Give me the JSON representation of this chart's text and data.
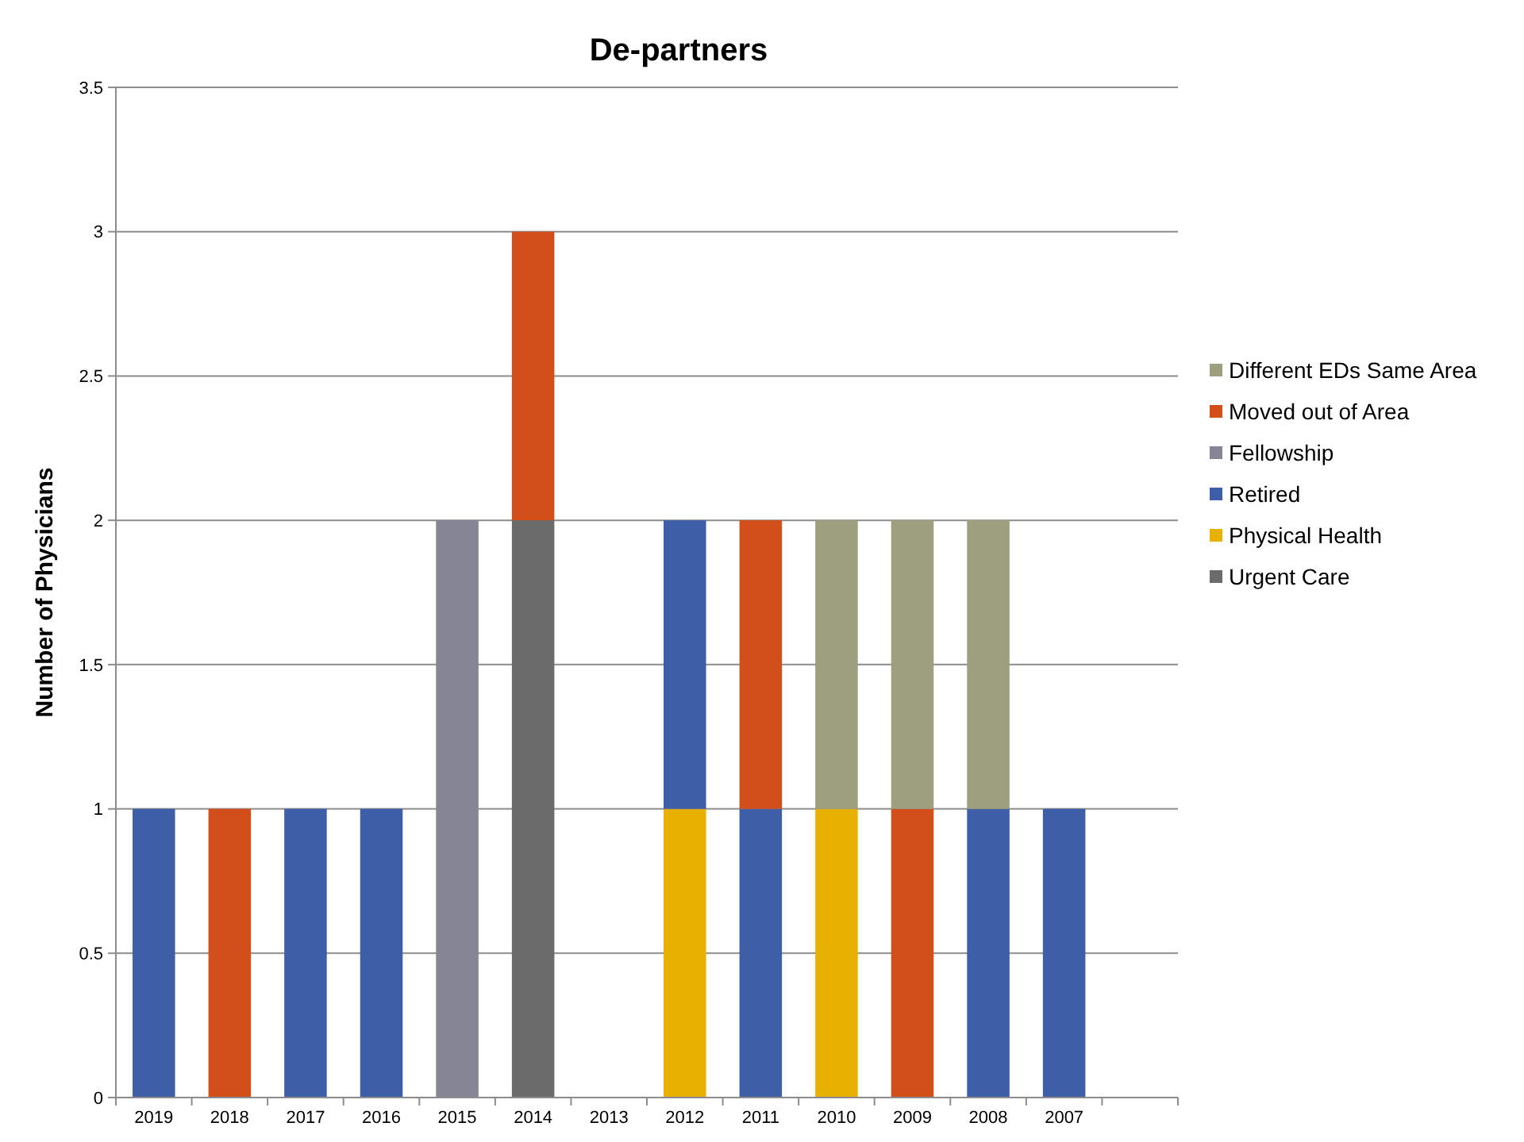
{
  "chart_data": {
    "type": "bar",
    "title": "De-partners",
    "ylabel": "Number of Physicians",
    "stacked": true,
    "grid": "y",
    "legend": "right",
    "categories": [
      "2019",
      "2018",
      "2017",
      "2016",
      "2015",
      "2014",
      "2013",
      "2012",
      "2011",
      "2010",
      "2009",
      "2008",
      "2007",
      null
    ],
    "ylim": [
      0,
      3.5
    ],
    "yticks": [
      0,
      0.5,
      1,
      1.5,
      2,
      2.5,
      3,
      3.5
    ],
    "series": [
      {
        "name": "Urgent Care",
        "color": "#6b6b6b",
        "values": [
          null,
          null,
          null,
          null,
          null,
          2,
          null,
          null,
          null,
          null,
          null,
          null,
          null,
          null
        ]
      },
      {
        "name": "Physical Health",
        "color": "#e8b000",
        "values": [
          null,
          null,
          null,
          null,
          null,
          null,
          null,
          1,
          null,
          1,
          null,
          null,
          null,
          null
        ]
      },
      {
        "name": "Retired",
        "color": "#3f5ea8",
        "values": [
          1,
          null,
          1,
          1,
          null,
          null,
          null,
          1,
          1,
          null,
          null,
          1,
          1,
          null
        ]
      },
      {
        "name": "Fellowship",
        "color": "#858595",
        "values": [
          null,
          null,
          null,
          null,
          2,
          null,
          null,
          null,
          null,
          null,
          null,
          null,
          null,
          null
        ]
      },
      {
        "name": "Moved out of Area",
        "color": "#d24e1b",
        "values": [
          null,
          1,
          null,
          null,
          null,
          1,
          null,
          null,
          1,
          null,
          1,
          null,
          null,
          null
        ]
      },
      {
        "name": "Different EDs Same Area",
        "color": "#9e9f7e",
        "values": [
          null,
          null,
          null,
          null,
          null,
          null,
          null,
          null,
          null,
          1,
          1,
          1,
          null,
          null
        ]
      }
    ]
  }
}
